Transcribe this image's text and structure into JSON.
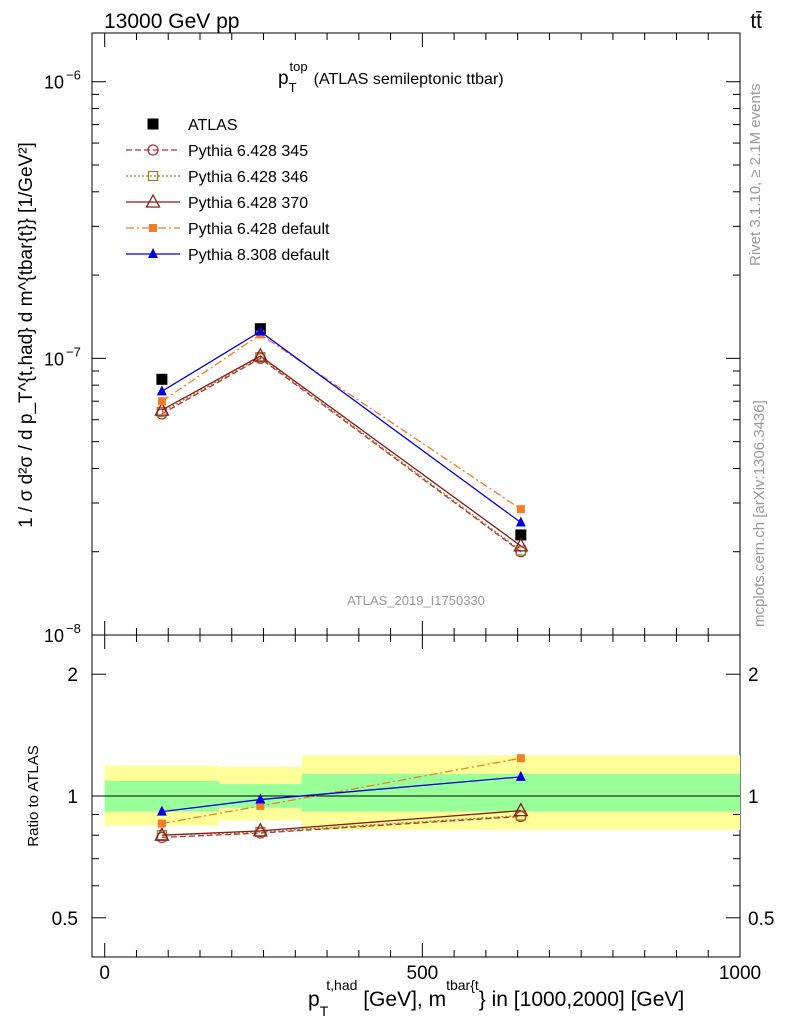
{
  "header": {
    "left": "13000 GeV pp",
    "right": "tt̄"
  },
  "side_labels": {
    "rivet": "Rivet 3.1.10, ≥ 2.1M events",
    "mcplots": "mcplots.cern.ch [arXiv:1306.3436]"
  },
  "watermark": "ATLAS_2019_I1750330",
  "chart_data": [
    {
      "type": "line",
      "title": "p_T^top (ATLAS semileptonic ttbar)",
      "title_parts": {
        "main": "p",
        "sub": "T",
        "sup": "top",
        "rest": "(ATLAS semileptonic ttbar)"
      },
      "ylabel": "1 / σ d²σ / d p_T^{t,had} d m^{tbar{t}} [1/GeV²]",
      "y_scale": "log",
      "ylim": [
        1e-08,
        1.5e-06
      ],
      "xlim": [
        -20,
        1000
      ],
      "y_ticks": [
        {
          "value": 1e-08,
          "label": "10",
          "exp": "−8"
        },
        {
          "value": 1e-07,
          "label": "10",
          "exp": "−7"
        },
        {
          "value": 1e-06,
          "label": "10",
          "exp": "−6"
        }
      ],
      "legend_position": "top-left",
      "x": [
        90,
        245,
        655
      ],
      "series": [
        {
          "name": "ATLAS",
          "color": "#000000",
          "marker": "filled-square",
          "line": "none",
          "values": [
            8.4e-08,
            1.28e-07,
            2.3e-08
          ]
        },
        {
          "name": "Pythia 6.428 345",
          "color": "#b2303a",
          "marker": "open-circle",
          "line": "dashed",
          "values": [
            6.3e-08,
            1e-07,
            2e-08
          ]
        },
        {
          "name": "Pythia 6.428 346",
          "color": "#a08020",
          "marker": "open-square",
          "line": "dotted",
          "values": [
            6.4e-08,
            1.01e-07,
            2.02e-08
          ]
        },
        {
          "name": "Pythia 6.428 370",
          "color": "#8b1a1a",
          "marker": "open-triangle",
          "line": "solid",
          "values": [
            6.5e-08,
            1.02e-07,
            2.1e-08
          ]
        },
        {
          "name": "Pythia 6.428 default",
          "color": "#f47c25",
          "marker": "filled-square-small",
          "line": "dashdot",
          "values": [
            7e-08,
            1.22e-07,
            2.85e-08
          ]
        },
        {
          "name": "Pythia 8.308 default",
          "color": "#0000dd",
          "marker": "filled-triangle",
          "line": "solid",
          "values": [
            7.6e-08,
            1.25e-07,
            2.55e-08
          ]
        }
      ]
    },
    {
      "type": "line",
      "ylabel": "Ratio to ATLAS",
      "y_scale": "log",
      "ylim": [
        0.4,
        2.5
      ],
      "xlim": [
        -20,
        1000
      ],
      "xlabel": "p_T^{t,had} [GeV], m^{tbar{t}} in [1000,2000] [GeV]",
      "xlabel_parts": {
        "p": "p",
        "sub": "T",
        "sup": "t,had",
        "mid": " [GeV], m",
        "sup2": "tbar{t",
        "rest": "} in [1000,2000] [GeV]"
      },
      "x_ticks": [
        0,
        500,
        1000
      ],
      "y_tick_labels": [
        {
          "value": 0.5,
          "label": "0.5"
        },
        {
          "value": 1,
          "label": "1"
        },
        {
          "value": 2,
          "label": "2"
        }
      ],
      "bands": [
        {
          "x0": 0,
          "x1": 180,
          "inner": [
            0.915,
            1.09
          ],
          "outer": [
            0.845,
            1.19
          ]
        },
        {
          "x0": 180,
          "x1": 310,
          "inner": [
            0.935,
            1.07
          ],
          "outer": [
            0.87,
            1.18
          ]
        },
        {
          "x0": 310,
          "x1": 1000,
          "inner": [
            0.915,
            1.135
          ],
          "outer": [
            0.825,
            1.26
          ]
        }
      ],
      "band_colors": {
        "inner": "#99ff99",
        "outer": "#ffff99"
      },
      "x": [
        90,
        245,
        655
      ],
      "series": [
        {
          "name": "Pythia 6.428 345",
          "color": "#b2303a",
          "marker": "open-circle",
          "line": "dashed",
          "values": [
            0.79,
            0.81,
            0.89
          ]
        },
        {
          "name": "Pythia 6.428 346",
          "color": "#a08020",
          "marker": "open-square",
          "line": "dotted",
          "values": [
            0.8,
            0.815,
            0.895
          ]
        },
        {
          "name": "Pythia 6.428 370",
          "color": "#8b1a1a",
          "marker": "open-triangle",
          "line": "solid",
          "values": [
            0.8,
            0.82,
            0.92
          ]
        },
        {
          "name": "Pythia 6.428 default",
          "color": "#f47c25",
          "marker": "filled-square-small",
          "line": "dashdot",
          "values": [
            0.855,
            0.945,
            1.24
          ]
        },
        {
          "name": "Pythia 8.308 default",
          "color": "#0000dd",
          "marker": "filled-triangle",
          "line": "solid",
          "values": [
            0.915,
            0.98,
            1.115
          ]
        }
      ]
    }
  ]
}
